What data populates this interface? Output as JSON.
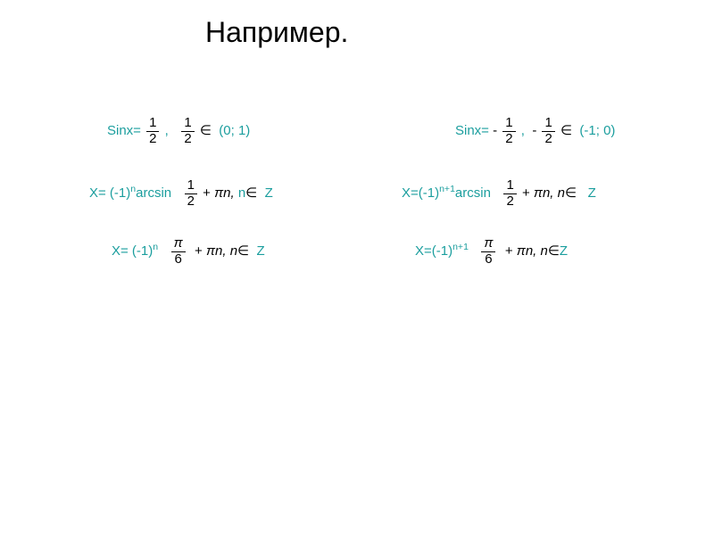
{
  "title": "Например.",
  "colors": {
    "accent": "#1b9e9e",
    "text": "#000000",
    "background": "#ffffff"
  },
  "typography": {
    "title_fontsize": 32,
    "body_fontsize": 15,
    "font_family": "Arial"
  },
  "left": {
    "line1": {
      "sinx_label": "Sinx=",
      "frac1_num": "1",
      "frac1_den": "2",
      "comma": ",",
      "frac2_num": "1",
      "frac2_den": "2",
      "elem": "∈",
      "interval": "(0; 1)"
    },
    "line2": {
      "x_label": "X= (-1)",
      "exp": "n",
      "arcsin": "arcsin",
      "frac_num": "1",
      "frac_den": "2",
      "plus": "+",
      "pin": "πn, ",
      "n_label": "n",
      "elem": "∈",
      "Z": "Z"
    },
    "line3": {
      "x_label": "X= (-1)",
      "exp": "n",
      "frac_num": "π",
      "frac_den": "6",
      "plus": "+",
      "pin": "πn, n",
      "elem": "∈",
      "Z": "Z"
    }
  },
  "right": {
    "line1": {
      "sinx_label": "Sinx= ",
      "minus1": "-",
      "frac1_num": "1",
      "frac1_den": "2",
      "comma": ",",
      "minus2": "-",
      "frac2_num": "1",
      "frac2_den": "2",
      "elem": "∈",
      "interval": "(-1; 0)"
    },
    "line2": {
      "x_label": "X=(-1)",
      "exp": "n+1",
      "arcsin": "arcsin",
      "frac_num": "1",
      "frac_den": "2",
      "plus": "+",
      "pin": "πn, n",
      "elem": "∈",
      "Z": "Z"
    },
    "line3": {
      "x_label": "X=(-1)",
      "exp": "n+1",
      "frac_num": "π",
      "frac_den": "6",
      "plus": "+",
      "pin": "πn, n",
      "elem": "∈",
      "Z": "Z"
    }
  }
}
